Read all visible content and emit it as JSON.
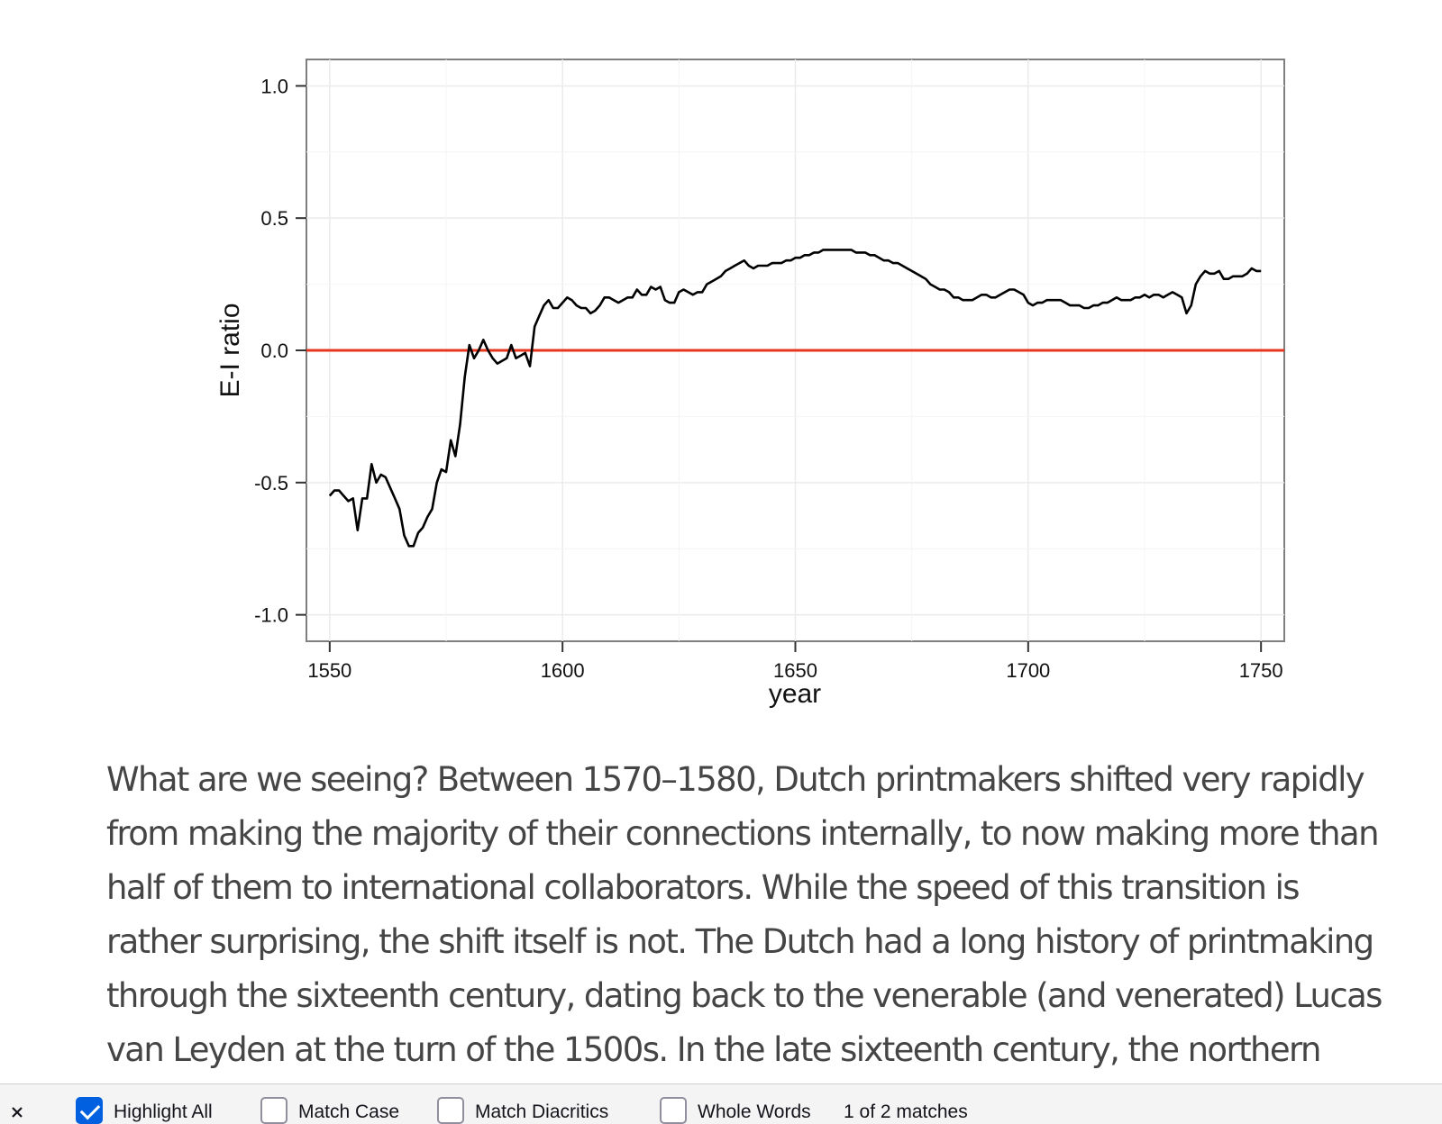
{
  "chart_data": {
    "type": "line",
    "title": "",
    "xlabel": "year",
    "ylabel": "E-I ratio",
    "xlim": [
      1545,
      1755
    ],
    "ylim": [
      -1.1,
      1.1
    ],
    "x_ticks": [
      1550,
      1600,
      1650,
      1700,
      1750
    ],
    "x_tick_labels": [
      "1550",
      "1600",
      "1650",
      "1700",
      "1750"
    ],
    "y_ticks": [
      1.0,
      0.5,
      0.0,
      -0.5,
      -1.0
    ],
    "y_tick_labels": [
      "1.0",
      "0.5",
      "0.0",
      "-0.5",
      "-1.0"
    ],
    "grid": true,
    "reference_line": {
      "y": 0.0,
      "color": "#e8351e"
    },
    "line_color": "#000000",
    "series": [
      {
        "x": [
          1550,
          1551,
          1552,
          1553,
          1554,
          1555,
          1556,
          1557,
          1558,
          1559,
          1560,
          1561,
          1562,
          1563,
          1564,
          1565,
          1566,
          1567,
          1568,
          1569,
          1570,
          1571,
          1572,
          1573,
          1574,
          1575,
          1576,
          1577,
          1578,
          1579,
          1580,
          1581,
          1582,
          1583,
          1584,
          1585,
          1586,
          1587,
          1588,
          1589,
          1590,
          1591,
          1592,
          1593,
          1594,
          1595,
          1596,
          1597,
          1598,
          1599,
          1600,
          1601,
          1602,
          1603,
          1604,
          1605,
          1606,
          1607,
          1608,
          1609,
          1610,
          1611,
          1612,
          1613,
          1614,
          1615,
          1616,
          1617,
          1618,
          1619,
          1620,
          1621,
          1622,
          1623,
          1624,
          1625,
          1626,
          1627,
          1628,
          1629,
          1630,
          1631,
          1632,
          1633,
          1634,
          1635,
          1636,
          1637,
          1638,
          1639,
          1640,
          1641,
          1642,
          1643,
          1644,
          1645,
          1646,
          1647,
          1648,
          1649,
          1650,
          1651,
          1652,
          1653,
          1654,
          1655,
          1656,
          1657,
          1658,
          1659,
          1660,
          1661,
          1662,
          1663,
          1664,
          1665,
          1666,
          1667,
          1668,
          1669,
          1670,
          1671,
          1672,
          1673,
          1674,
          1675,
          1676,
          1677,
          1678,
          1679,
          1680,
          1681,
          1682,
          1683,
          1684,
          1685,
          1686,
          1687,
          1688,
          1689,
          1690,
          1691,
          1692,
          1693,
          1694,
          1695,
          1696,
          1697,
          1698,
          1699,
          1700,
          1701,
          1702,
          1703,
          1704,
          1705,
          1706,
          1707,
          1708,
          1709,
          1710,
          1711,
          1712,
          1713,
          1714,
          1715,
          1716,
          1717,
          1718,
          1719,
          1720,
          1721,
          1722,
          1723,
          1724,
          1725,
          1726,
          1727,
          1728,
          1729,
          1730,
          1731,
          1732,
          1733,
          1734,
          1735,
          1736,
          1737,
          1738,
          1739,
          1740,
          1741,
          1742,
          1743,
          1744,
          1745,
          1746,
          1747,
          1748,
          1749,
          1750
        ],
        "y": [
          -0.55,
          -0.53,
          -0.53,
          -0.55,
          -0.57,
          -0.56,
          -0.68,
          -0.56,
          -0.56,
          -0.43,
          -0.5,
          -0.47,
          -0.48,
          -0.52,
          -0.56,
          -0.6,
          -0.7,
          -0.74,
          -0.74,
          -0.69,
          -0.67,
          -0.63,
          -0.6,
          -0.5,
          -0.45,
          -0.46,
          -0.34,
          -0.4,
          -0.28,
          -0.1,
          0.02,
          -0.03,
          0.0,
          0.04,
          0.0,
          -0.03,
          -0.05,
          -0.04,
          -0.03,
          0.02,
          -0.03,
          -0.02,
          -0.01,
          -0.06,
          0.09,
          0.13,
          0.17,
          0.19,
          0.16,
          0.16,
          0.18,
          0.2,
          0.19,
          0.17,
          0.16,
          0.16,
          0.14,
          0.15,
          0.17,
          0.2,
          0.2,
          0.19,
          0.18,
          0.19,
          0.2,
          0.2,
          0.23,
          0.21,
          0.21,
          0.24,
          0.23,
          0.24,
          0.19,
          0.18,
          0.18,
          0.22,
          0.23,
          0.22,
          0.21,
          0.22,
          0.22,
          0.25,
          0.26,
          0.27,
          0.28,
          0.3,
          0.31,
          0.32,
          0.33,
          0.34,
          0.32,
          0.31,
          0.32,
          0.32,
          0.32,
          0.33,
          0.33,
          0.33,
          0.34,
          0.34,
          0.35,
          0.35,
          0.36,
          0.36,
          0.37,
          0.37,
          0.38,
          0.38,
          0.38,
          0.38,
          0.38,
          0.38,
          0.38,
          0.37,
          0.37,
          0.37,
          0.36,
          0.36,
          0.35,
          0.34,
          0.34,
          0.33,
          0.33,
          0.32,
          0.31,
          0.3,
          0.29,
          0.28,
          0.27,
          0.25,
          0.24,
          0.23,
          0.23,
          0.22,
          0.2,
          0.2,
          0.19,
          0.19,
          0.19,
          0.2,
          0.21,
          0.21,
          0.2,
          0.2,
          0.21,
          0.22,
          0.23,
          0.23,
          0.22,
          0.21,
          0.18,
          0.17,
          0.18,
          0.18,
          0.19,
          0.19,
          0.19,
          0.19,
          0.18,
          0.17,
          0.17,
          0.17,
          0.16,
          0.16,
          0.17,
          0.17,
          0.18,
          0.18,
          0.19,
          0.2,
          0.19,
          0.19,
          0.19,
          0.2,
          0.2,
          0.21,
          0.2,
          0.21,
          0.21,
          0.2,
          0.21,
          0.22,
          0.21,
          0.2,
          0.14,
          0.17,
          0.25,
          0.28,
          0.3,
          0.29,
          0.29,
          0.3,
          0.27,
          0.27,
          0.28,
          0.28,
          0.28,
          0.29,
          0.31,
          0.3,
          0.3
        ]
      }
    ]
  },
  "article": {
    "lines": [
      "What are we seeing? Between 1570–1580, Dutch printmakers shifted very rapidly",
      "from making the majority of their connections internally, to now making more than",
      "half of them to international collaborators. While the speed of this transition is",
      "rather surprising, the shift itself is not. The Dutch had a long history of printmaking",
      "through the sixteenth century, dating back to the venerable (and venerated) Lucas",
      "van Leyden at the turn of the 1500s. In the late sixteenth century, the northern"
    ]
  },
  "findbar": {
    "close_icon": "close-icon",
    "highlight_all": {
      "label": "Highlight All",
      "checked": true
    },
    "match_case": {
      "label": "Match Case",
      "checked": false
    },
    "match_diacritics": {
      "label": "Match Diacritics",
      "checked": false
    },
    "whole_words": {
      "label": "Whole Words",
      "checked": false
    },
    "match_count": "1 of 2 matches",
    "accent_color": "#0060df"
  }
}
